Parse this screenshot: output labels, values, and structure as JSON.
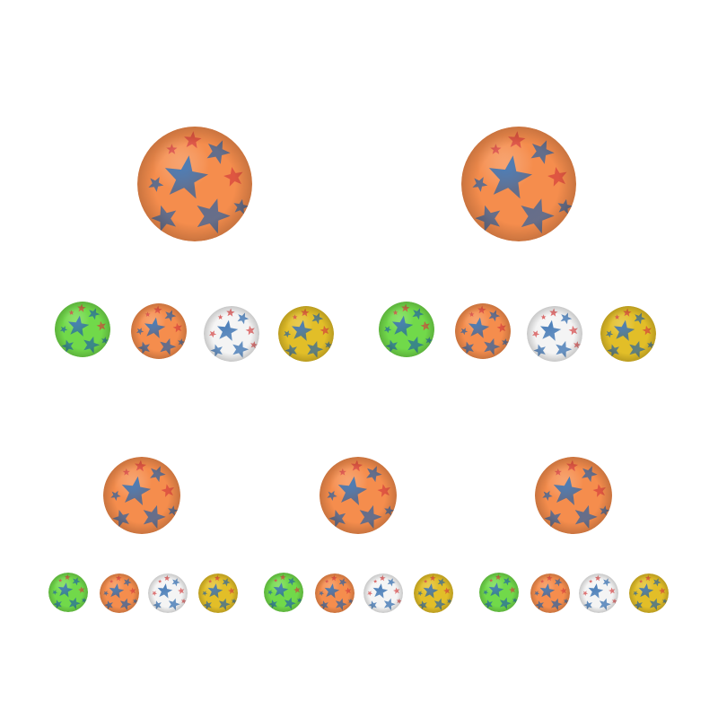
{
  "ball_colors": {
    "orange": "#f58d4d",
    "green": "#71d94a",
    "white": "#f4f4f4",
    "yellow": "#e2be28"
  },
  "star_colors": {
    "blue": "#1f5fa8",
    "red": "#d43b3b"
  },
  "panels": [
    {
      "name": "panel-1",
      "large_ball": "orange",
      "small_balls": [
        "green",
        "orange",
        "white",
        "yellow"
      ]
    },
    {
      "name": "panel-2",
      "large_ball": "orange",
      "small_balls": [
        "green",
        "orange",
        "white",
        "yellow"
      ]
    },
    {
      "name": "panel-3",
      "large_ball": "orange",
      "small_balls": [
        "green",
        "orange",
        "white",
        "yellow"
      ]
    },
    {
      "name": "panel-4",
      "large_ball": "orange",
      "small_balls": [
        "green",
        "orange",
        "white",
        "yellow"
      ]
    },
    {
      "name": "panel-5",
      "large_ball": "orange",
      "small_balls": [
        "green",
        "orange",
        "white",
        "yellow"
      ]
    }
  ]
}
